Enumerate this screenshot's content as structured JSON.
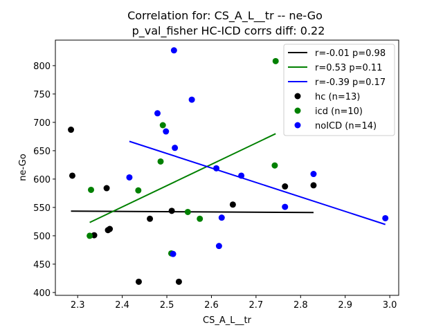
{
  "chart_data": {
    "type": "scatter",
    "title": "Correlation for: CS_A_L__tr -- ne-Go",
    "subtitle": "p_val_fisher HC-ICD corrs diff: 0.22",
    "xlabel": "CS_A_L__tr",
    "ylabel": "ne-Go",
    "xlim": [
      2.25,
      3.02
    ],
    "ylim": [
      395,
      845
    ],
    "xticks": [
      "2.3",
      "2.4",
      "2.5",
      "2.6",
      "2.7",
      "2.8",
      "2.9",
      "3.0"
    ],
    "yticks": [
      "400",
      "450",
      "500",
      "550",
      "600",
      "650",
      "700",
      "750",
      "800"
    ],
    "grid": false,
    "legend_position": "top-right",
    "series": [
      {
        "name": "hc (n=13)",
        "color": "#000000",
        "points": [
          [
            2.285,
            687
          ],
          [
            2.288,
            606
          ],
          [
            2.337,
            501
          ],
          [
            2.365,
            584
          ],
          [
            2.368,
            510
          ],
          [
            2.372,
            512
          ],
          [
            2.437,
            419
          ],
          [
            2.462,
            530
          ],
          [
            2.511,
            544
          ],
          [
            2.527,
            419
          ],
          [
            2.648,
            555
          ],
          [
            2.765,
            587
          ],
          [
            2.829,
            589
          ]
        ]
      },
      {
        "name": "icd (n=10)",
        "color": "#008000",
        "points": [
          [
            2.327,
            500
          ],
          [
            2.33,
            581
          ],
          [
            2.436,
            580
          ],
          [
            2.486,
            631
          ],
          [
            2.491,
            695
          ],
          [
            2.51,
            469
          ],
          [
            2.547,
            542
          ],
          [
            2.574,
            530
          ],
          [
            2.742,
            624
          ],
          [
            2.744,
            808
          ]
        ]
      },
      {
        "name": "noICD (n=14)",
        "color": "#0000ff",
        "points": [
          [
            2.416,
            603
          ],
          [
            2.479,
            716
          ],
          [
            2.498,
            684
          ],
          [
            2.514,
            468
          ],
          [
            2.516,
            827
          ],
          [
            2.518,
            655
          ],
          [
            2.556,
            740
          ],
          [
            2.611,
            619
          ],
          [
            2.617,
            482
          ],
          [
            2.623,
            532
          ],
          [
            2.667,
            606
          ],
          [
            2.765,
            551
          ],
          [
            2.829,
            609
          ],
          [
            2.99,
            531
          ]
        ]
      }
    ],
    "fit_lines": [
      {
        "name": "r=-0.01 p=0.98",
        "color": "#000000",
        "x": [
          2.285,
          2.829
        ],
        "y": [
          543.5,
          541.0
        ]
      },
      {
        "name": "r=0.53 p=0.11",
        "color": "#008000",
        "x": [
          2.327,
          2.744
        ],
        "y": [
          523.5,
          680.0
        ]
      },
      {
        "name": "r=-0.39 p=0.17",
        "color": "#0000ff",
        "x": [
          2.416,
          2.99
        ],
        "y": [
          666.5,
          520.0
        ]
      }
    ]
  }
}
